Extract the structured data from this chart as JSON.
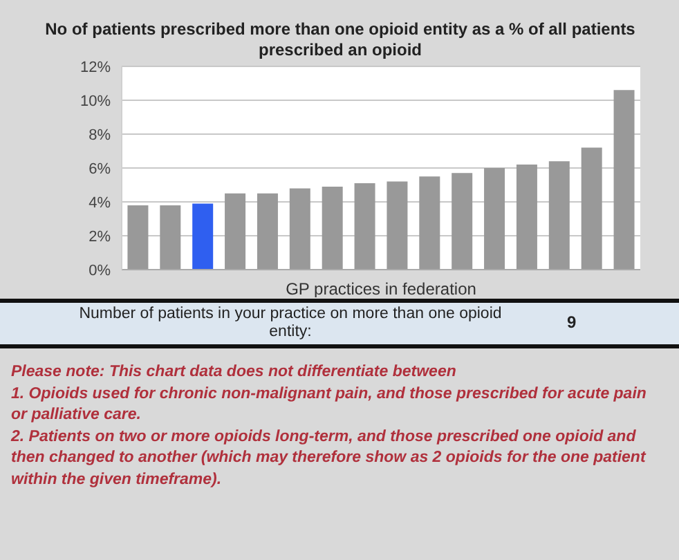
{
  "chart_data": {
    "type": "bar",
    "title": "No of patients prescribed more than one opioid entity as a % of all patients prescribed an opioid",
    "xlabel": "GP practices in federation",
    "categories": [
      null,
      null,
      null,
      null,
      null,
      null,
      null,
      null,
      null,
      null,
      null,
      null,
      null,
      null,
      null,
      null
    ],
    "values": [
      3.8,
      3.8,
      3.9,
      4.5,
      4.5,
      4.8,
      4.9,
      5.1,
      5.2,
      5.5,
      5.7,
      6.0,
      6.2,
      6.4,
      7.2,
      10.6
    ],
    "colors": [
      "#999999",
      "#999999",
      "#2f5ff0",
      "#999999",
      "#999999",
      "#999999",
      "#999999",
      "#999999",
      "#999999",
      "#999999",
      "#999999",
      "#999999",
      "#999999",
      "#999999",
      "#999999",
      "#999999"
    ],
    "ylim": [
      0,
      12
    ],
    "yticks": [
      {
        "value": 0,
        "label": "0%"
      },
      {
        "value": 2,
        "label": "2%"
      },
      {
        "value": 4,
        "label": "4%"
      },
      {
        "value": 6,
        "label": "6%"
      },
      {
        "value": 8,
        "label": "8%"
      },
      {
        "value": 10,
        "label": "10%"
      },
      {
        "value": 12,
        "label": "12%"
      }
    ],
    "grid": "y",
    "annotations": [
      "Number of patients in your practice on more than one opioid entity:",
      "9",
      "Please note: This chart data does not differentiate between",
      "1.  Opioids used for chronic non-malignant pain, and those prescribed for acute pain or palliative care.",
      "2.  Patients on two or more opioids long-term, and those prescribed one opioid and then changed to another (which may therefore show as 2 opioids for the one patient within the given timeframe)."
    ]
  }
}
